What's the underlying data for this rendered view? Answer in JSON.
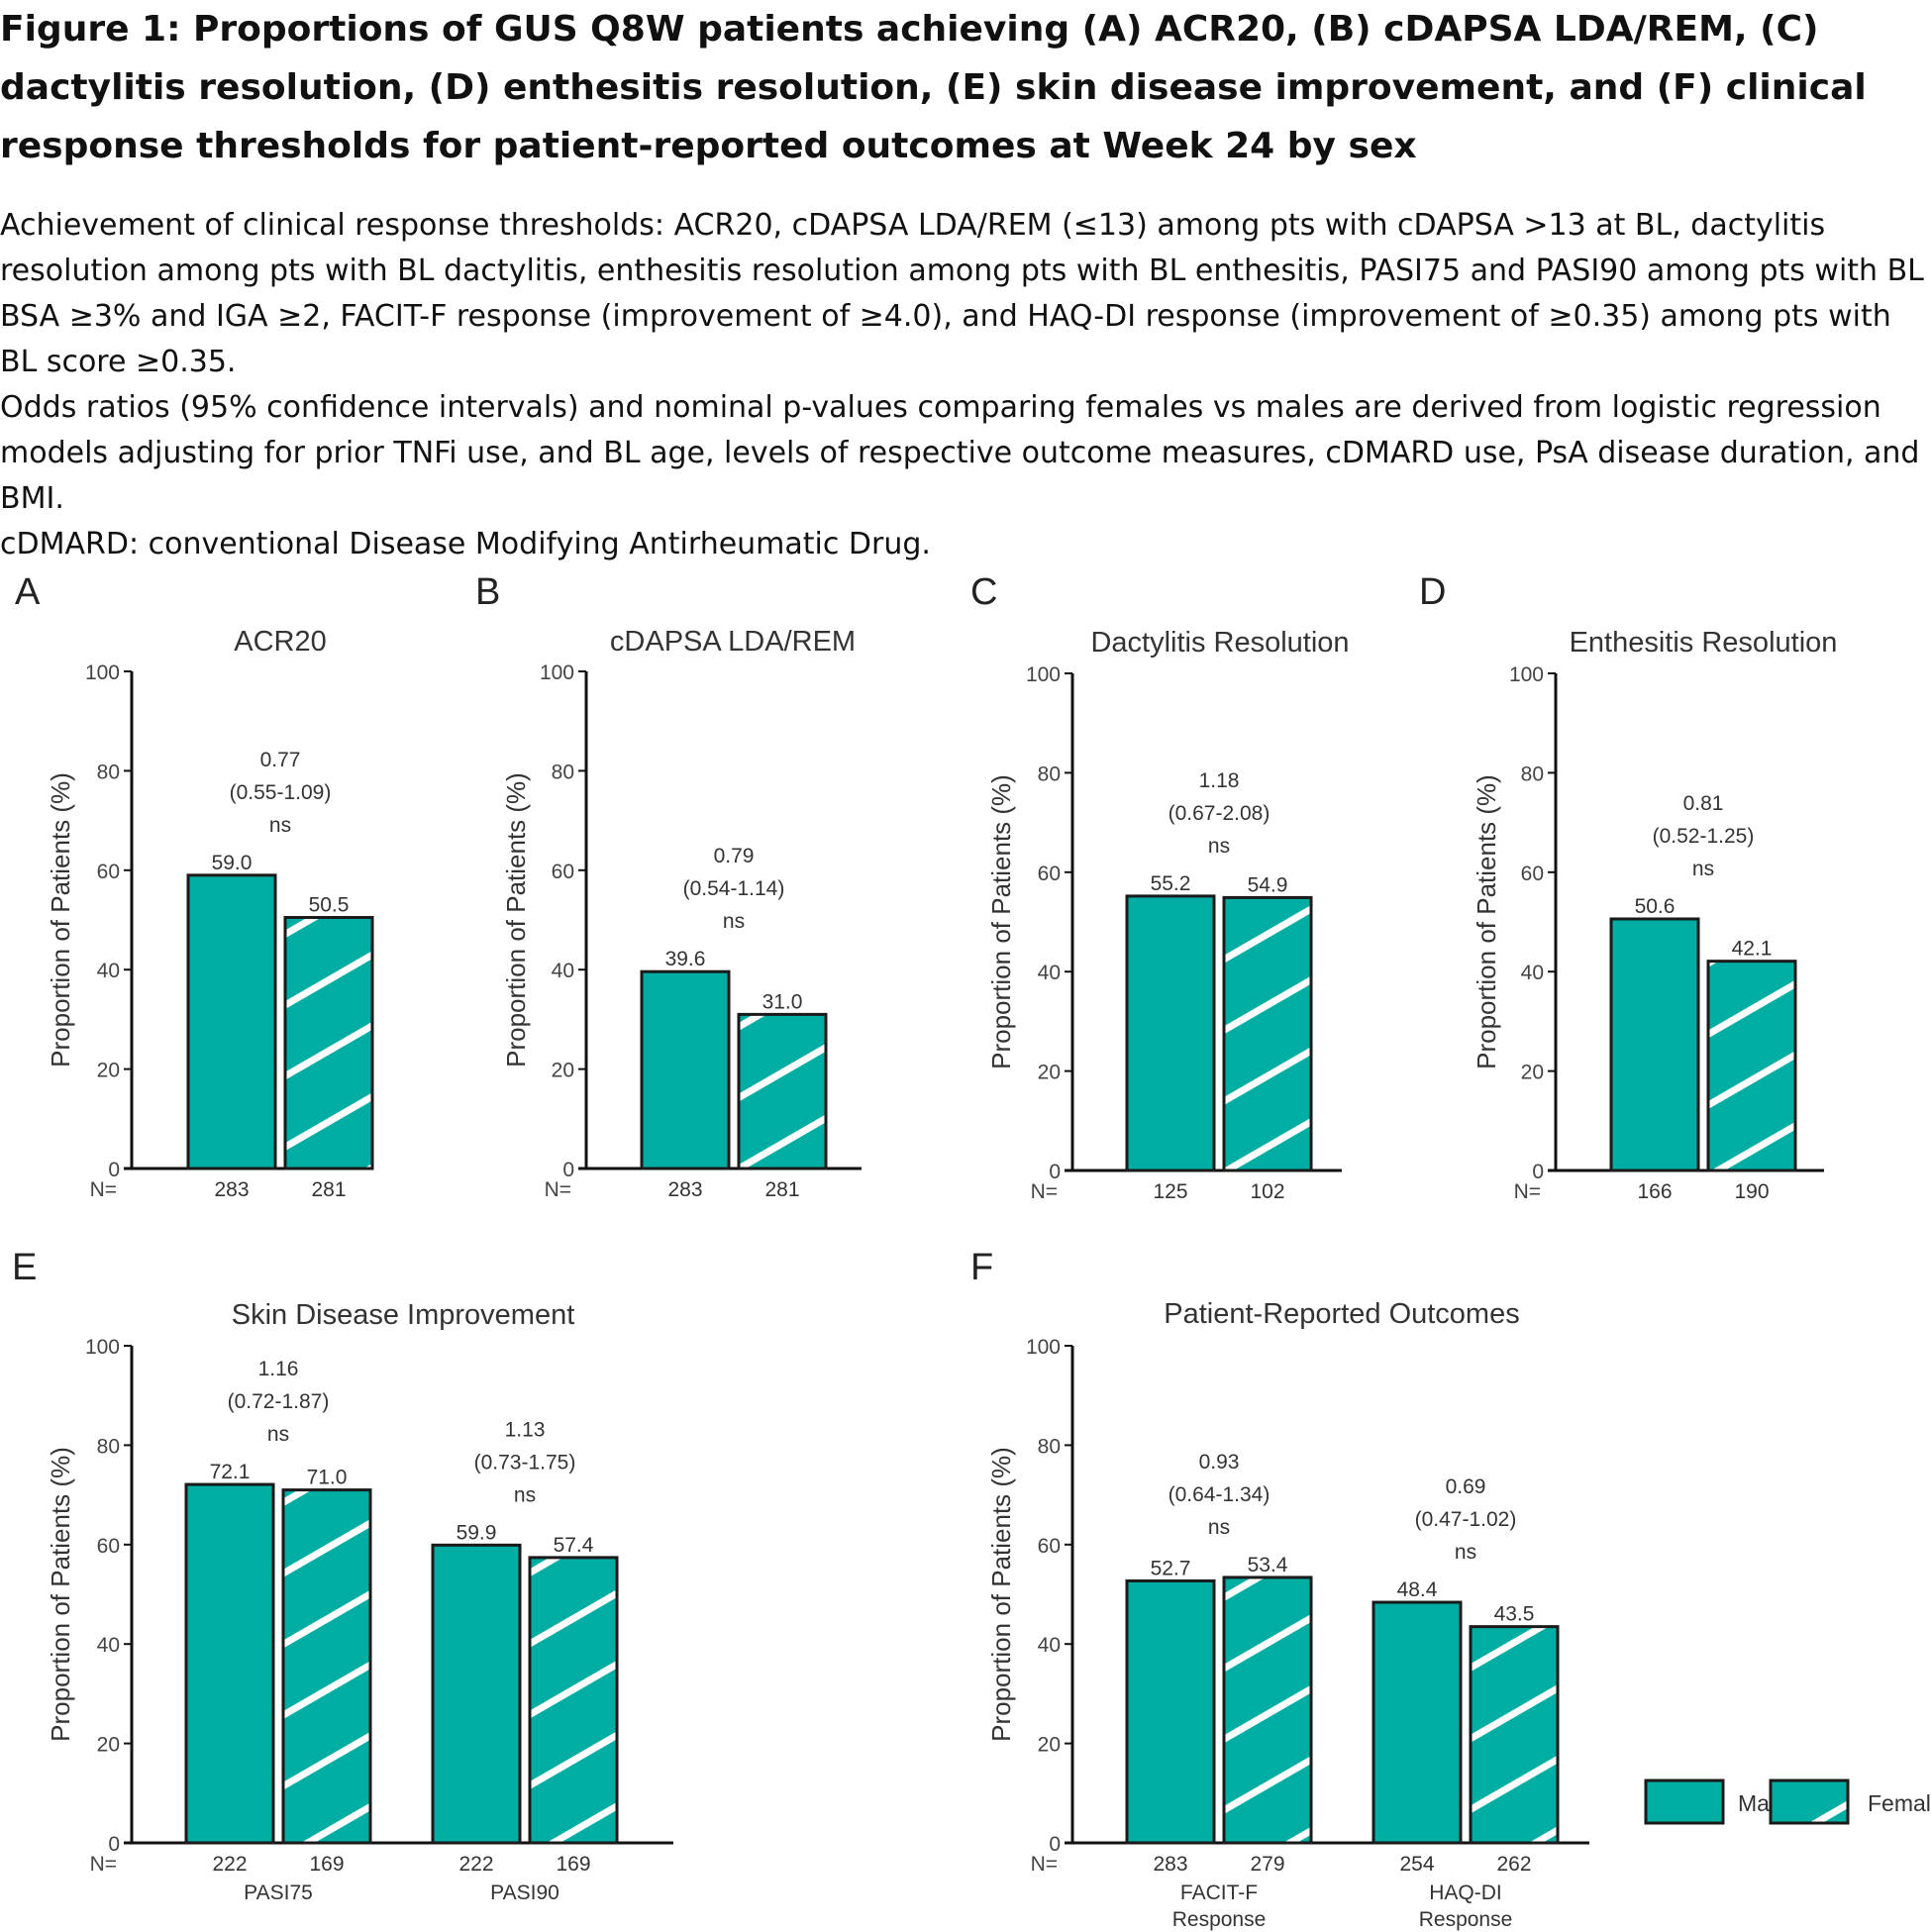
{
  "figure": {
    "title": "Figure 1: Proportions of GUS Q8W patients achieving (A) ACR20, (B) cDAPSA LDA/REM, (C) dactylitis resolution, (D) enthesitis resolution, (E) skin disease improvement, and (F) clinical response thresholds for patient-reported outcomes at Week 24 by sex",
    "caption": [
      "Achievement of clinical response thresholds: ACR20, cDAPSA LDA/REM (≤13) among pts with cDAPSA >13 at BL, dactylitis resolution among pts with BL dactylitis, enthesitis resolution among pts with BL enthesitis, PASI75 and PASI90 among pts with BL BSA ≥3% and IGA ≥2, FACIT-F response (improvement of ≥4.0), and HAQ-DI response (improvement of ≥0.35) among pts with BL score ≥0.35.",
      "Odds ratios (95% confidence intervals) and nominal p-values comparing females vs males are derived from logistic regression models adjusting for prior TNFi use, and BL age, levels of respective outcome measures, cDMARD use, PsA disease duration, and BMI.",
      "cDMARD: conventional Disease Modifying Antirheumatic Drug."
    ]
  },
  "legend": {
    "position": "bottom-right",
    "male": "Male",
    "female": "Female"
  },
  "colors": {
    "bar_fill": "#00ADA3",
    "hatch": "#ffffff",
    "outline": "#1a1a1a"
  },
  "chart_data": [
    {
      "type": "bar",
      "panel": "A",
      "title": "ACR20",
      "ylabel": "Proportion of Patients (%)",
      "ylim": [
        0,
        100
      ],
      "yticks": [
        0,
        20,
        40,
        60,
        80,
        100
      ],
      "n_label": "N=",
      "groups": [
        {
          "label": "",
          "male": 59.0,
          "female": 50.5,
          "n_male": 283,
          "n_female": 281,
          "or": "0.77",
          "ci": "(0.55-1.09)",
          "sig": "ns"
        }
      ]
    },
    {
      "type": "bar",
      "panel": "B",
      "title": "cDAPSA LDA/REM",
      "ylabel": "Proportion of Patients (%)",
      "ylim": [
        0,
        100
      ],
      "yticks": [
        0,
        20,
        40,
        60,
        80,
        100
      ],
      "n_label": "N=",
      "groups": [
        {
          "label": "",
          "male": 39.6,
          "female": 31.0,
          "n_male": 283,
          "n_female": 281,
          "or": "0.79",
          "ci": "(0.54-1.14)",
          "sig": "ns"
        }
      ]
    },
    {
      "type": "bar",
      "panel": "C",
      "title": "Dactylitis Resolution",
      "ylabel": "Proportion of Patients (%)",
      "ylim": [
        0,
        100
      ],
      "yticks": [
        0,
        20,
        40,
        60,
        80,
        100
      ],
      "n_label": "N=",
      "groups": [
        {
          "label": "",
          "male": 55.2,
          "female": 54.9,
          "n_male": 125,
          "n_female": 102,
          "or": "1.18",
          "ci": "(0.67-2.08)",
          "sig": "ns"
        }
      ]
    },
    {
      "type": "bar",
      "panel": "D",
      "title": "Enthesitis Resolution",
      "ylabel": "Proportion of Patients (%)",
      "ylim": [
        0,
        100
      ],
      "yticks": [
        0,
        20,
        40,
        60,
        80,
        100
      ],
      "n_label": "N=",
      "groups": [
        {
          "label": "",
          "male": 50.6,
          "female": 42.1,
          "n_male": 166,
          "n_female": 190,
          "or": "0.81",
          "ci": "(0.52-1.25)",
          "sig": "ns"
        }
      ]
    },
    {
      "type": "bar",
      "panel": "E",
      "title": "Skin Disease Improvement",
      "ylabel": "Proportion of Patients (%)",
      "ylim": [
        0,
        100
      ],
      "yticks": [
        0,
        20,
        40,
        60,
        80,
        100
      ],
      "n_label": "N=",
      "groups": [
        {
          "label": "PASI75",
          "male": 72.1,
          "female": 71.0,
          "n_male": 222,
          "n_female": 169,
          "or": "1.16",
          "ci": "(0.72-1.87)",
          "sig": "ns"
        },
        {
          "label": "PASI90",
          "male": 59.9,
          "female": 57.4,
          "n_male": 222,
          "n_female": 169,
          "or": "1.13",
          "ci": "(0.73-1.75)",
          "sig": "ns"
        }
      ]
    },
    {
      "type": "bar",
      "panel": "F",
      "title": "Patient-Reported Outcomes",
      "ylabel": "Proportion of Patients (%)",
      "ylim": [
        0,
        100
      ],
      "yticks": [
        0,
        20,
        40,
        60,
        80,
        100
      ],
      "n_label": "N=",
      "groups": [
        {
          "label": "FACIT-F\nResponse",
          "male": 52.7,
          "female": 53.4,
          "n_male": 283,
          "n_female": 279,
          "or": "0.93",
          "ci": "(0.64-1.34)",
          "sig": "ns"
        },
        {
          "label": "HAQ-DI\nResponse",
          "male": 48.4,
          "female": 43.5,
          "n_male": 254,
          "n_female": 262,
          "or": "0.69",
          "ci": "(0.47-1.02)",
          "sig": "ns"
        }
      ]
    }
  ]
}
